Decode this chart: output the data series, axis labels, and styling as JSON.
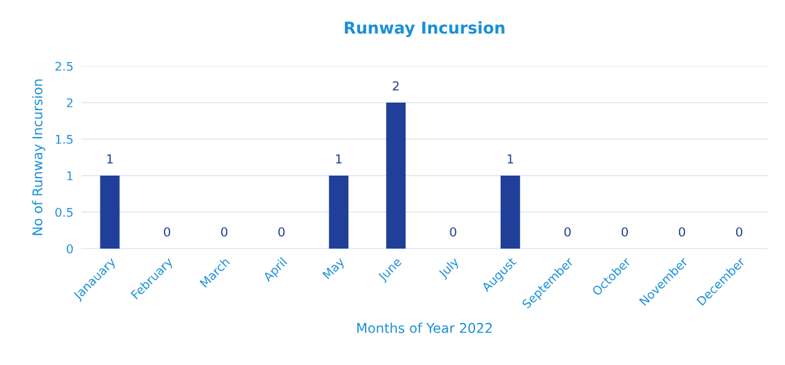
{
  "chart_data": {
    "type": "bar",
    "title": "Runway Incursion",
    "xlabel": "Months of Year 2022",
    "ylabel": "No of Runway Incursion",
    "categories": [
      "Janauary",
      "February",
      "March",
      "April",
      "May",
      "June",
      "July",
      "August",
      "September",
      "October",
      "November",
      "December"
    ],
    "values": [
      1,
      0,
      0,
      0,
      1,
      2,
      0,
      1,
      0,
      0,
      0,
      0
    ],
    "color": "#203f99",
    "ylim": [
      0,
      2.5
    ],
    "yticks": [
      0,
      0.5,
      1,
      1.5,
      2,
      2.5
    ],
    "grid": "y",
    "data_labels": true
  }
}
